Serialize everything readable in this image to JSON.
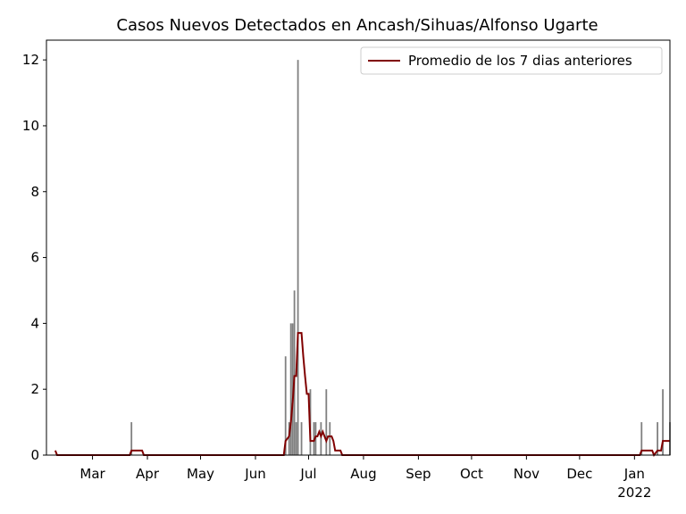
{
  "chart_data": {
    "type": "bar-line",
    "title": "Casos Nuevos Detectados en Ancash/Sihuas/Alfonso Ugarte",
    "bars": {
      "color": "#808080",
      "x": [
        81,
        168,
        170,
        171,
        172,
        173,
        174,
        175,
        177,
        182,
        184,
        185,
        188,
        191,
        193,
        369,
        378,
        381,
        385
      ],
      "values": [
        1,
        3,
        1,
        4,
        4,
        5,
        1,
        12,
        1,
        2,
        1,
        1,
        1,
        2,
        1,
        1,
        1,
        2,
        1
      ]
    },
    "series": [
      {
        "name": "Promedio de los 7 dias anteriores",
        "color": "#800000",
        "x": [
          38,
          39,
          80,
          81,
          87,
          88,
          167,
          168,
          170,
          171,
          172,
          173,
          174,
          175,
          177,
          178,
          179,
          180,
          181,
          182,
          184,
          185,
          186,
          187,
          188,
          189,
          190,
          191,
          192,
          194,
          195,
          196,
          199,
          200,
          368,
          369,
          375,
          376,
          378,
          380,
          381,
          385
        ],
        "values": [
          0.14,
          0,
          0,
          0.14,
          0.14,
          0,
          0,
          0.43,
          0.57,
          1.0,
          1.6,
          2.4,
          2.4,
          3.71,
          3.71,
          3.0,
          2.4,
          1.86,
          1.86,
          0.43,
          0.43,
          0.57,
          0.57,
          0.71,
          0.57,
          0.71,
          0.57,
          0.43,
          0.57,
          0.57,
          0.43,
          0.14,
          0.14,
          0,
          0,
          0.14,
          0.14,
          0,
          0.14,
          0.14,
          0.43,
          0.43
        ]
      }
    ],
    "xlim": [
      33,
      385
    ],
    "xticks": [
      {
        "value": 59,
        "label": "Mar"
      },
      {
        "value": 90,
        "label": "Apr"
      },
      {
        "value": 120,
        "label": "May"
      },
      {
        "value": 151,
        "label": "Jun"
      },
      {
        "value": 181,
        "label": "Jul"
      },
      {
        "value": 212,
        "label": "Aug"
      },
      {
        "value": 243,
        "label": "Sep"
      },
      {
        "value": 273,
        "label": "Oct"
      },
      {
        "value": 304,
        "label": "Nov"
      },
      {
        "value": 334,
        "label": "Dec"
      },
      {
        "value": 365,
        "label": "Jan\n2022"
      }
    ],
    "ylim": [
      0,
      12.6
    ],
    "yticks": [
      0,
      2,
      4,
      6,
      8,
      10,
      12
    ],
    "legend": "upper right"
  }
}
